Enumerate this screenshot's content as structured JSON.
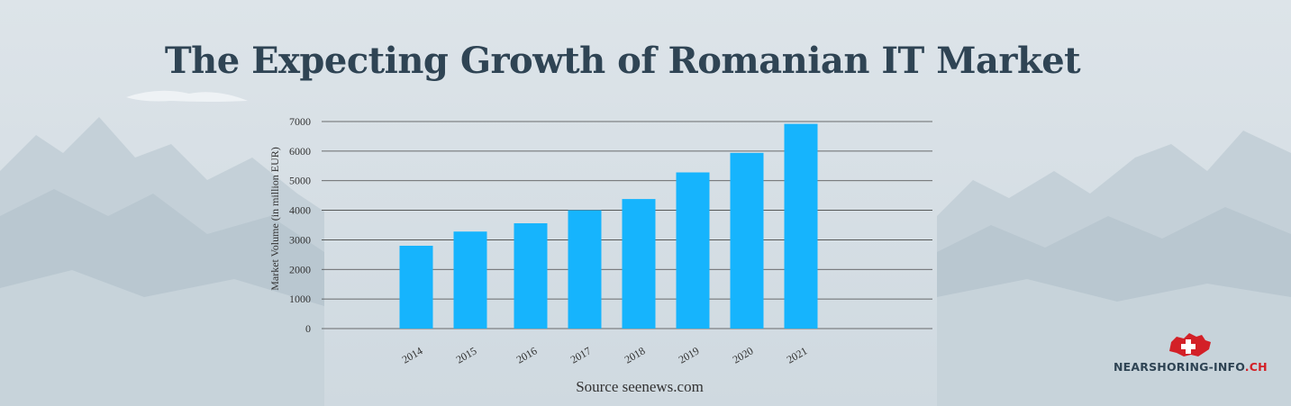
{
  "title": "The Expecting Growth of Romanian IT Market",
  "source": "Source seenews.com",
  "logo": {
    "name": "NEARSHORING-INFO",
    "suffix": ".CH",
    "accent_color": "#d32027"
  },
  "colors": {
    "bar": "#16b4fd",
    "title": "#2f4454",
    "grid": "#444444"
  },
  "chart_data": {
    "type": "bar",
    "categories": [
      "2014",
      "2015",
      "2016",
      "2017",
      "2018",
      "2019",
      "2020",
      "2021"
    ],
    "values": [
      2800,
      3280,
      3560,
      4000,
      4380,
      5280,
      5940,
      6920
    ],
    "title": "The Expecting Growth of Romanian IT Market",
    "xlabel": "",
    "ylabel": "Market Volume (in million EUR)",
    "ylim": [
      0,
      7000
    ],
    "yticks": [
      0,
      1000,
      2000,
      3000,
      4000,
      5000,
      6000,
      7000
    ],
    "grid": true,
    "legend": "none"
  }
}
